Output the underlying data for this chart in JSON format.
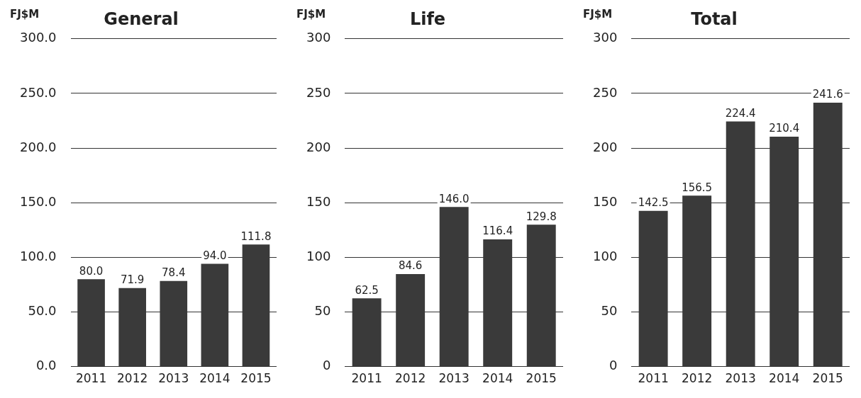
{
  "chart_data": [
    {
      "type": "bar",
      "title": "General",
      "ylabel": "FJ$M",
      "categories": [
        "2011",
        "2012",
        "2013",
        "2014",
        "2015"
      ],
      "values": [
        80.0,
        71.9,
        78.4,
        94.0,
        111.8
      ],
      "value_labels": [
        "80.0",
        "71.9",
        "78.4",
        "94.0",
        "111.8"
      ],
      "color": "#3a3a3a",
      "ylim": [
        0,
        300
      ],
      "yticks": [
        {
          "value": 0,
          "label": "0.0"
        },
        {
          "value": 50,
          "label": "50.0"
        },
        {
          "value": 100,
          "label": "100.0"
        },
        {
          "value": 150,
          "label": "150.0"
        },
        {
          "value": 200,
          "label": "200.0"
        },
        {
          "value": 250,
          "label": "250.0"
        },
        {
          "value": 300,
          "label": "300.0"
        }
      ],
      "grid": "y"
    },
    {
      "type": "bar",
      "title": "Life",
      "ylabel": "FJ$M",
      "categories": [
        "2011",
        "2012",
        "2013",
        "2014",
        "2015"
      ],
      "values": [
        62.5,
        84.6,
        146.0,
        116.4,
        129.8
      ],
      "value_labels": [
        "62.5",
        "84.6",
        "146.0",
        "116.4",
        "129.8"
      ],
      "color": "#3a3a3a",
      "ylim": [
        0,
        300
      ],
      "yticks": [
        0,
        50,
        100,
        150,
        200,
        250,
        300
      ],
      "grid": "y"
    },
    {
      "type": "bar",
      "title": "Total",
      "ylabel": "FJ$M",
      "categories": [
        "2011",
        "2012",
        "2013",
        "2014",
        "2015"
      ],
      "values": [
        142.5,
        156.5,
        224.4,
        210.4,
        241.6
      ],
      "value_labels": [
        "142.5",
        "156.5",
        "224.4",
        "210.4",
        "241.6"
      ],
      "color": "#3a3a3a",
      "ylim": [
        0,
        300
      ],
      "yticks": [
        0,
        50,
        100,
        150,
        200,
        250,
        300
      ],
      "grid": "y"
    }
  ]
}
